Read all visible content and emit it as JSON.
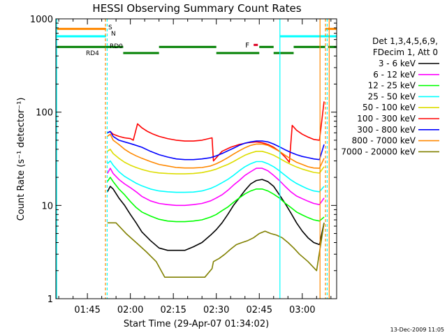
{
  "chart_data": {
    "type": "line",
    "title": "HESSI Observing Summary Count Rates",
    "xlabel": "Start Time (29-Apr-07 01:34:02)",
    "ylabel": "Count Rate (s⁻¹ detector⁻¹)",
    "yscale": "log",
    "ylim": [
      1,
      1000
    ],
    "xlim_minutes": [
      94.0,
      192.0
    ],
    "x_tick_labels": [
      "01:45",
      "02:00",
      "02:15",
      "02:30",
      "02:45",
      "03:00"
    ],
    "x_tick_minutes": [
      105,
      120,
      135,
      150,
      165,
      180
    ],
    "y_tick_labels": [
      "1",
      "10",
      "100",
      "1000"
    ],
    "y_tick_values": [
      1,
      10,
      100,
      1000
    ],
    "legend_title": [
      "Det 1,3,4,5,6,9,",
      "FDecim 1, Att 0"
    ],
    "legend_position": "right",
    "footer_timestamp": "13-Dec-2009 11:05",
    "series": [
      {
        "name": "3 - 6 keV",
        "color": "#000000",
        "x": [
          112,
          113,
          114,
          116,
          118,
          120,
          122,
          124,
          127,
          130,
          133,
          136,
          139,
          142,
          145,
          148,
          150,
          152,
          154,
          156,
          158,
          160,
          162,
          164,
          166,
          168,
          170,
          172,
          174,
          176,
          178,
          180,
          182,
          184,
          186,
          187.6
        ],
        "y": [
          14,
          16,
          15,
          12,
          10,
          8,
          6.5,
          5.2,
          4.2,
          3.5,
          3.3,
          3.3,
          3.3,
          3.6,
          4.0,
          4.8,
          5.5,
          6.5,
          8,
          10,
          12,
          14.5,
          17,
          18.5,
          19,
          18,
          16,
          13,
          10.5,
          8.3,
          6.5,
          5.3,
          4.5,
          4.0,
          3.8,
          6.5
        ]
      },
      {
        "name": "6 - 12 keV",
        "color": "#ff00ff",
        "x": [
          112,
          113,
          114,
          116,
          118,
          120,
          122,
          124,
          127,
          130,
          133,
          136,
          139,
          142,
          145,
          148,
          150,
          152,
          154,
          156,
          158,
          160,
          162,
          164,
          166,
          168,
          170,
          172,
          174,
          176,
          178,
          180,
          182,
          184,
          186,
          187.6
        ],
        "y": [
          22,
          25,
          22,
          19,
          17,
          15.5,
          14,
          12.5,
          11.2,
          10.5,
          10.2,
          10.0,
          10.0,
          10.2,
          10.5,
          11.2,
          12,
          13,
          14.5,
          16.5,
          18.5,
          21,
          23,
          25,
          25,
          23.5,
          21,
          18.5,
          16,
          14,
          12.6,
          11.8,
          11.1,
          10.5,
          10.2,
          12
        ]
      },
      {
        "name": "12 - 25 keV",
        "color": "#00ff00",
        "x": [
          112,
          113,
          114,
          116,
          118,
          120,
          122,
          124,
          127,
          130,
          133,
          136,
          139,
          142,
          145,
          148,
          150,
          152,
          154,
          156,
          158,
          160,
          162,
          164,
          166,
          168,
          170,
          172,
          174,
          176,
          178,
          180,
          182,
          184,
          186,
          187.6
        ],
        "y": [
          18,
          20,
          18,
          15,
          13,
          11,
          9.5,
          8.5,
          7.7,
          7.1,
          6.8,
          6.7,
          6.7,
          6.8,
          7.0,
          7.5,
          8,
          8.8,
          9.6,
          10.8,
          12,
          13.3,
          14.3,
          15,
          15,
          14.3,
          13.2,
          12,
          10.6,
          9.5,
          8.5,
          7.9,
          7.4,
          7.0,
          6.8,
          7.5
        ]
      },
      {
        "name": "25 - 50 keV",
        "color": "#00ffff",
        "x": [
          112,
          113,
          114,
          116,
          118,
          120,
          122,
          124,
          127,
          130,
          133,
          136,
          139,
          142,
          145,
          148,
          150,
          152,
          154,
          156,
          158,
          160,
          162,
          164,
          166,
          168,
          170,
          172,
          174,
          176,
          178,
          180,
          182,
          184,
          186,
          187.6
        ],
        "y": [
          28,
          30,
          27,
          23,
          20.5,
          18.8,
          17.3,
          16.2,
          15.0,
          14.3,
          14.0,
          13.8,
          13.8,
          13.9,
          14.3,
          15.2,
          16.2,
          17.5,
          19,
          21,
          23.5,
          26,
          28,
          29.5,
          29.5,
          28,
          26,
          23.5,
          21,
          18.8,
          17.2,
          16,
          15,
          14.3,
          14.0,
          16
        ]
      },
      {
        "name": "50 - 100 keV",
        "color": "#dddd00",
        "x": [
          112,
          113,
          114,
          116,
          118,
          120,
          122,
          124,
          127,
          130,
          133,
          136,
          139,
          142,
          145,
          148,
          150,
          152,
          154,
          156,
          158,
          160,
          162,
          164,
          166,
          168,
          170,
          172,
          174,
          176,
          178,
          180,
          182,
          184,
          186,
          187.6
        ],
        "y": [
          38,
          40,
          36,
          32,
          29,
          27,
          25.5,
          24.3,
          23,
          22.3,
          22,
          21.8,
          21.8,
          22,
          22.5,
          23.5,
          24.5,
          26,
          27.5,
          29.5,
          32,
          34.5,
          36.5,
          38,
          38,
          36.5,
          34.5,
          32,
          29.5,
          27.5,
          25.8,
          24.5,
          23.5,
          22.6,
          22.2,
          26
        ]
      },
      {
        "name": "100 - 300 keV",
        "color": "#ff0000",
        "x": [
          112,
          113,
          114,
          116,
          118,
          120,
          121,
          122.5,
          124,
          126,
          128,
          130,
          133,
          136,
          139,
          142,
          145,
          148.5,
          149,
          152,
          155,
          158,
          161,
          164,
          166,
          168,
          170,
          172,
          174,
          175.5,
          176.5,
          178,
          180,
          182,
          184,
          186,
          187.6
        ],
        "y": [
          60,
          62,
          58,
          55,
          53,
          52,
          50,
          75,
          68,
          62,
          58,
          55,
          52,
          50,
          49,
          49,
          50,
          53,
          30,
          38,
          42,
          45,
          47,
          48,
          47,
          45,
          42,
          38,
          33,
          29,
          72,
          64,
          58,
          54,
          51,
          50,
          130
        ]
      },
      {
        "name": "300 - 800 keV",
        "color": "#0000ff",
        "x": [
          112,
          113,
          114,
          116,
          118,
          120,
          122,
          124,
          127,
          130,
          133,
          136,
          139,
          142,
          145,
          148,
          150,
          152,
          154,
          156,
          158,
          160,
          162,
          164,
          166,
          168,
          170,
          172,
          174,
          176,
          178,
          180,
          182,
          184,
          186,
          187.6
        ],
        "y": [
          60,
          62,
          55,
          50,
          48,
          46,
          44,
          42,
          38,
          35,
          33,
          31.5,
          31,
          31,
          31.5,
          32.5,
          34,
          36,
          38.5,
          41,
          44,
          46.5,
          48,
          49,
          49,
          48,
          45.5,
          42.5,
          39.5,
          37,
          35,
          33.5,
          32.5,
          31.5,
          31,
          45
        ]
      },
      {
        "name": "800 - 7000 keV",
        "color": "#ff8800",
        "x": [
          112,
          113,
          114,
          116,
          118,
          120,
          122,
          124,
          127,
          130,
          133,
          136,
          139,
          142,
          145,
          148,
          150,
          152,
          154,
          156,
          158,
          160,
          162,
          164,
          166,
          168,
          170,
          172,
          174,
          176,
          178,
          180,
          182,
          184,
          186,
          187.6
        ],
        "y": [
          55,
          58,
          50,
          45,
          40,
          36.5,
          34,
          32,
          29.5,
          27.5,
          26.5,
          25.5,
          25.2,
          25.2,
          25.5,
          26.5,
          28,
          30,
          32.5,
          35.5,
          38.5,
          41.5,
          44,
          45.5,
          45.5,
          44,
          41,
          38,
          34.5,
          31.5,
          29,
          27.5,
          26,
          25.2,
          25,
          32
        ]
      },
      {
        "name": "7000 - 20000 keV",
        "color": "#808000",
        "x": [
          112,
          115,
          118.5,
          122,
          125.5,
          129,
          132,
          137,
          142,
          146,
          148.5,
          149,
          151,
          153,
          155,
          157,
          159,
          161,
          163,
          165,
          167,
          169,
          171,
          173,
          175,
          177,
          179,
          182,
          185,
          187.6
        ],
        "y": [
          6.5,
          6.5,
          5.0,
          4.0,
          3.2,
          2.5,
          1.7,
          1.7,
          1.7,
          1.7,
          2.1,
          2.5,
          2.7,
          3.0,
          3.4,
          3.8,
          4.0,
          4.2,
          4.5,
          5.0,
          5.3,
          5.0,
          4.8,
          4.5,
          4.0,
          3.5,
          3.0,
          2.5,
          2.0,
          6.5
        ]
      }
    ],
    "attenuator_states": [
      {
        "label": "S",
        "color": "#ff8800",
        "y": 780,
        "segments": [
          [
            94,
            111.5
          ],
          [
            188,
            192
          ]
        ]
      },
      {
        "label": "N",
        "color": "#00ffff",
        "y": 650,
        "segments": [
          [
            94,
            111.5
          ],
          [
            172.2,
            192
          ]
        ]
      }
    ],
    "decimation_states": [
      {
        "label": "RD0",
        "color": "#008000",
        "y": 500,
        "segments": [
          [
            94,
            111.5
          ],
          [
            111.5,
            117.5
          ],
          [
            130,
            150
          ],
          [
            165,
            170
          ],
          [
            177,
            188
          ],
          [
            189,
            192
          ]
        ]
      },
      {
        "label": "RD4",
        "color": "#008000",
        "y": 430,
        "segments": [
          [
            117.5,
            130
          ],
          [
            150,
            165
          ],
          [
            170,
            177
          ]
        ]
      }
    ],
    "flare_flag": {
      "label": "F",
      "color": "#dd0022",
      "x": 164.5,
      "y": 530
    },
    "vertical_markers": [
      {
        "color": "#00ffff",
        "style": "solid",
        "x": 94.3
      },
      {
        "color": "#ff8800",
        "style": "dashed",
        "x": 111.3
      },
      {
        "color": "#00ffff",
        "style": "dashed",
        "x": 111.9
      },
      {
        "color": "#00ffff",
        "style": "solid",
        "x": 172.2
      },
      {
        "color": "#ff8800",
        "style": "solid",
        "x": 186.2
      },
      {
        "color": "#ff8800",
        "style": "dashed",
        "x": 188.1
      },
      {
        "color": "#00ffff",
        "style": "dashed",
        "x": 188.7
      },
      {
        "color": "#ff8800",
        "style": "solid",
        "x": 189.4
      }
    ]
  }
}
